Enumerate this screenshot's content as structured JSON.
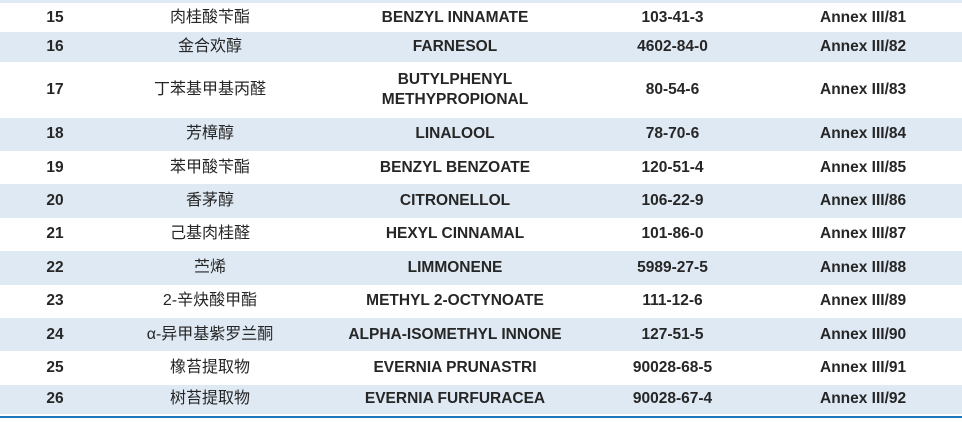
{
  "table": {
    "column_keys": [
      "no",
      "cn",
      "en",
      "cas",
      "annex"
    ],
    "column_names": [
      "serial-number",
      "chinese-name",
      "inci-name",
      "cas-number",
      "annex-reference"
    ],
    "rows": [
      {
        "no": "15",
        "cn": "肉桂酸苄酯",
        "en": "BENZYL INNAMATE",
        "cas": "103-41-3",
        "annex": "Annex III/81"
      },
      {
        "no": "16",
        "cn": "金合欢醇",
        "en": "FARNESOL",
        "cas": "4602-84-0",
        "annex": "Annex III/82"
      },
      {
        "no": "17",
        "cn": "丁苯基甲基丙醛",
        "en": "BUTYLPHENYL\nMETHYPROPIONAL",
        "cas": "80-54-6",
        "annex": "Annex III/83"
      },
      {
        "no": "18",
        "cn": "芳樟醇",
        "en": "LINALOOL",
        "cas": "78-70-6",
        "annex": "Annex III/84"
      },
      {
        "no": "19",
        "cn": "苯甲酸苄酯",
        "en": "BENZYL BENZOATE",
        "cas": "120-51-4",
        "annex": "Annex III/85"
      },
      {
        "no": "20",
        "cn": "香茅醇",
        "en": "CITRONELLOL",
        "cas": "106-22-9",
        "annex": "Annex III/86"
      },
      {
        "no": "21",
        "cn": "己基肉桂醛",
        "en": "HEXYL CINNAMAL",
        "cas": "101-86-0",
        "annex": "Annex III/87"
      },
      {
        "no": "22",
        "cn": "苎烯",
        "en": "LIMMONENE",
        "cas": "5989-27-5",
        "annex": "Annex III/88"
      },
      {
        "no": "23",
        "cn": "2-辛炔酸甲酯",
        "en": "METHYL 2-OCTYNOATE",
        "cas": "111-12-6",
        "annex": "Annex III/89"
      },
      {
        "no": "24",
        "cn": "α-异甲基紫罗兰酮",
        "en": "ALPHA-ISOMETHYL INNONE",
        "cas": "127-51-5",
        "annex": "Annex III/90"
      },
      {
        "no": "25",
        "cn": "橡苔提取物",
        "en": "EVERNIA PRUNASTRI",
        "cas": "90028-68-5",
        "annex": "Annex III/91"
      },
      {
        "no": "26",
        "cn": "树苔提取物",
        "en": "EVERNIA FURFURACEA",
        "cas": "90028-67-4",
        "annex": "Annex III/92"
      }
    ]
  },
  "colors": {
    "row_alternate": "#dfe9f3",
    "bottom_rule": "#1f78bc",
    "text": "#262626"
  }
}
